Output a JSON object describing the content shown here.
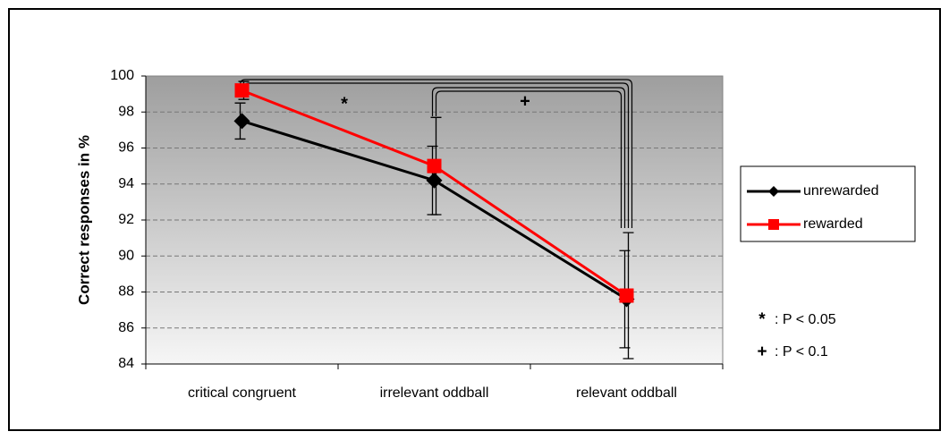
{
  "chart_data": {
    "type": "line",
    "y_label": "Correct responses in %",
    "categories": [
      "critical congruent",
      "irrelevant oddball",
      "relevant oddball"
    ],
    "series": [
      {
        "name": "unrewarded",
        "color": "#000000",
        "marker": "diamond",
        "values": [
          97.5,
          94.2,
          87.6
        ],
        "errors": [
          1.0,
          1.9,
          2.7
        ]
      },
      {
        "name": "rewarded",
        "color": "#ff0000",
        "marker": "square",
        "values": [
          99.2,
          95.0,
          87.8
        ],
        "errors": [
          0.5,
          2.7,
          3.5
        ]
      }
    ],
    "ylim": [
      84,
      100
    ],
    "yticks": [
      84,
      86,
      88,
      90,
      92,
      94,
      96,
      98,
      100
    ],
    "grid": true,
    "legend": "right",
    "annotations": [
      "*",
      "+"
    ],
    "notes": [
      {
        "symbol": "*",
        "text": ": P < 0.05"
      },
      {
        "symbol": "+",
        "text": ": P < 0.1"
      }
    ]
  }
}
